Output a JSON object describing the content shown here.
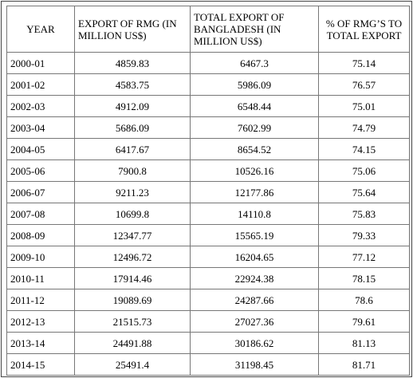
{
  "table": {
    "headers": {
      "year": "YEAR",
      "rmg": "EXPORT OF RMG (IN MILLION US$)",
      "total": "TOTAL EXPORT OF BANGLADESH (IN MILLION US$)",
      "pct": "% OF RMG’S TO TOTAL EXPORT"
    },
    "rows": [
      {
        "year": "2000-01",
        "rmg": "4859.83",
        "total": "6467.3",
        "pct": "75.14"
      },
      {
        "year": "2001-02",
        "rmg": "4583.75",
        "total": "5986.09",
        "pct": "76.57"
      },
      {
        "year": "2002-03",
        "rmg": "4912.09",
        "total": "6548.44",
        "pct": "75.01"
      },
      {
        "year": "2003-04",
        "rmg": "5686.09",
        "total": "7602.99",
        "pct": "74.79"
      },
      {
        "year": "2004-05",
        "rmg": "6417.67",
        "total": "8654.52",
        "pct": "74.15"
      },
      {
        "year": "2005-06",
        "rmg": "7900.8",
        "total": "10526.16",
        "pct": "75.06"
      },
      {
        "year": "2006-07",
        "rmg": "9211.23",
        "total": "12177.86",
        "pct": "75.64"
      },
      {
        "year": "2007-08",
        "rmg": "10699.8",
        "total": "14110.8",
        "pct": "75.83"
      },
      {
        "year": "2008-09",
        "rmg": "12347.77",
        "total": "15565.19",
        "pct": "79.33"
      },
      {
        "year": "2009-10",
        "rmg": "12496.72",
        "total": "16204.65",
        "pct": "77.12"
      },
      {
        "year": "2010-11",
        "rmg": "17914.46",
        "total": "22924.38",
        "pct": "78.15"
      },
      {
        "year": "2011-12",
        "rmg": "19089.69",
        "total": "24287.66",
        "pct": "78.6"
      },
      {
        "year": "2012-13",
        "rmg": "21515.73",
        "total": "27027.36",
        "pct": "79.61"
      },
      {
        "year": "2013-14",
        "rmg": "24491.88",
        "total": "30186.62",
        "pct": "81.13"
      },
      {
        "year": "2014-15",
        "rmg": "25491.4",
        "total": "31198.45",
        "pct": "81.71"
      }
    ]
  }
}
